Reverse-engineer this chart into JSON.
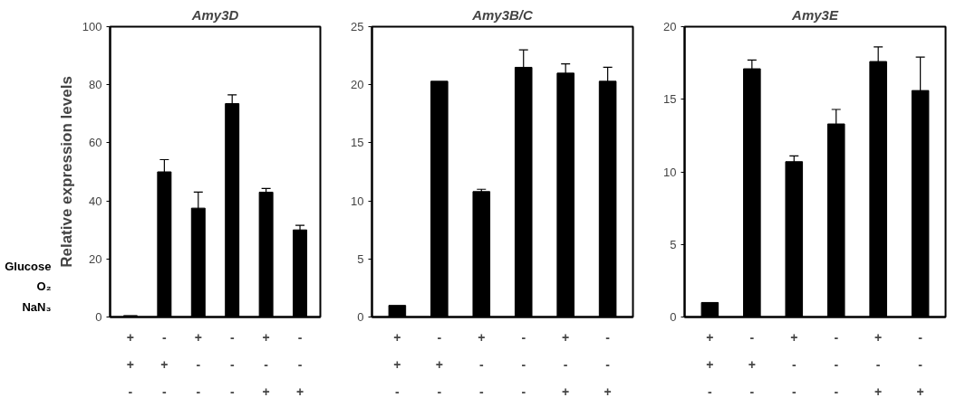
{
  "chart_data": [
    {
      "type": "bar",
      "title": "Amy3D",
      "ylabel": "Relative expression levels",
      "categories": [
        "+\n+\n-",
        "-\n+\n-",
        "+\n-\n-",
        "-\n-\n-",
        "+\n-\n+",
        "-\n-\n+"
      ],
      "values": [
        0.5,
        50,
        37.5,
        73.5,
        43,
        30
      ],
      "errors": [
        null,
        4.2,
        5.5,
        3,
        1.3,
        1.6
      ],
      "color": "#000000",
      "ylim": [
        0,
        100
      ],
      "yticks": [
        0,
        20,
        40,
        60,
        80,
        100
      ],
      "annotations": [
        "Glucose",
        "O₂",
        "NaN₃"
      ]
    },
    {
      "type": "bar",
      "title": "Amy3B/C",
      "categories": [
        "+\n+\n-",
        "-\n+\n-",
        "+\n-\n-",
        "-\n-\n-",
        "+\n-\n+",
        "-\n-\n+"
      ],
      "values": [
        1,
        20.3,
        10.8,
        21.5,
        21,
        20.3
      ],
      "errors": [
        null,
        null,
        0.2,
        1.5,
        0.8,
        1.2
      ],
      "color": "#000000",
      "ylim": [
        0,
        25
      ],
      "yticks": [
        0,
        5,
        10,
        15,
        20,
        25
      ]
    },
    {
      "type": "bar",
      "title": "Amy3E",
      "categories": [
        "+\n+\n-",
        "-\n+\n-",
        "+\n-\n-",
        "-\n-\n-",
        "+\n-\n+",
        "-\n-\n+"
      ],
      "values": [
        1,
        17.1,
        10.7,
        13.3,
        17.6,
        15.6
      ],
      "errors": [
        null,
        0.6,
        0.4,
        1.0,
        1.0,
        2.3
      ],
      "color": "#000000",
      "ylim": [
        0,
        20
      ],
      "yticks": [
        0,
        5,
        10,
        15,
        20
      ]
    }
  ]
}
